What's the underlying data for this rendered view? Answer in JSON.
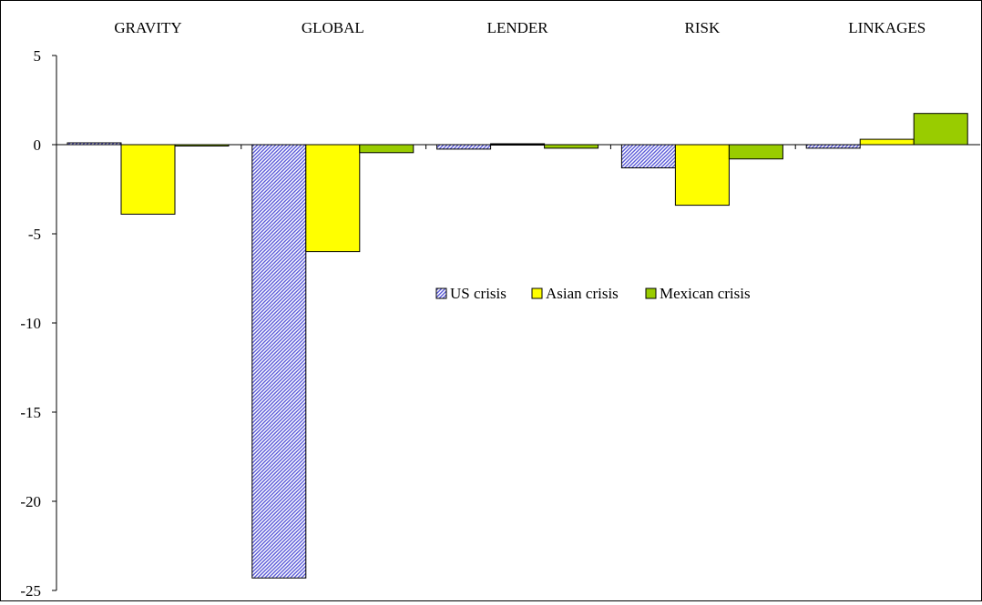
{
  "chart_data": {
    "type": "bar",
    "title": "",
    "xlabel": "",
    "ylabel": "",
    "categories": [
      "GRAVITY",
      "GLOBAL",
      "LENDER",
      "RISK",
      "LINKAGES"
    ],
    "series": [
      {
        "name": "US crisis",
        "values": [
          0.1,
          -24.3,
          -0.25,
          -1.3,
          -0.2
        ],
        "color": "#6a6ae0",
        "pattern": "diagonal-hatch"
      },
      {
        "name": "Asian crisis",
        "values": [
          -3.9,
          -6.0,
          0.05,
          -3.4,
          0.3
        ],
        "color": "#ffff00",
        "pattern": "solid"
      },
      {
        "name": "Mexican crisis",
        "values": [
          -0.05,
          -0.45,
          -0.2,
          -0.8,
          1.75
        ],
        "color": "#99cc00",
        "pattern": "solid"
      }
    ],
    "ylim": [
      -25,
      5
    ],
    "yticks": [
      5,
      0,
      -5,
      -10,
      -15,
      -20,
      -25
    ],
    "ytick_labels": [
      "5",
      "0",
      "-5",
      "-10",
      "-15",
      "-20",
      "-25"
    ],
    "grid": false,
    "category_labels_position": "top",
    "legend": {
      "placement": "center",
      "entries": [
        "US crisis",
        "Asian crisis",
        "Mexican crisis"
      ]
    }
  }
}
